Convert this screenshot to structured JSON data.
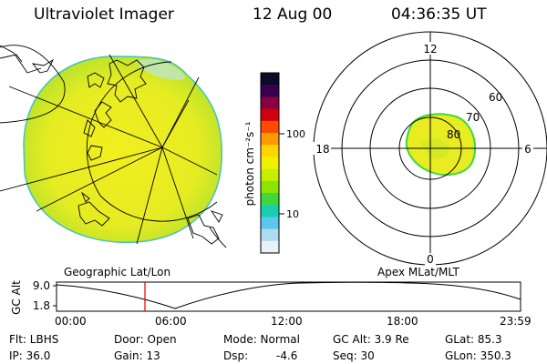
{
  "header": {
    "title": "Ultraviolet Imager",
    "date": "12 Aug 00",
    "time": "04:36:35 UT"
  },
  "left_panel": {
    "label": "Geographic Lat/Lon"
  },
  "colorbar": {
    "unit_label": "photon cm⁻²s⁻¹",
    "ticks": [
      "100",
      "10"
    ],
    "colors": [
      "#0a0a2a",
      "#3a0050",
      "#8a0040",
      "#d00010",
      "#ff4a00",
      "#ff9a00",
      "#ffd400",
      "#f0f000",
      "#c6ee00",
      "#8ee400",
      "#3ed83e",
      "#18d0b0",
      "#5ac8ee",
      "#b0dcf0",
      "#e8f2f6"
    ]
  },
  "right_panel": {
    "label": "Apex MLat/MLT",
    "lat_labels": [
      "60",
      "70",
      "80"
    ],
    "mlt_labels": {
      "top": "12",
      "left": "18",
      "right": "6",
      "bottom": "0"
    }
  },
  "timeline": {
    "ylabel": "GC Alt",
    "yticks": [
      "9.0",
      "1.8"
    ],
    "xticks": [
      "00:00",
      "06:00",
      "12:00",
      "18:00",
      "23:59"
    ],
    "marker_color": "#e00000"
  },
  "footer": {
    "flt": "Flt: LBHS",
    "ip": "IP: 36.0",
    "door": "Door: Open",
    "gain": "Gain: 13",
    "mode": "Mode: Normal",
    "dsp": "Dsp:",
    "dsp_val": "-4.6",
    "gc_alt": "GC Alt: 3.9 Re",
    "seq": "Seq: 30",
    "glat": "GLat: 85.3",
    "glon": "GLon: 350.3"
  }
}
